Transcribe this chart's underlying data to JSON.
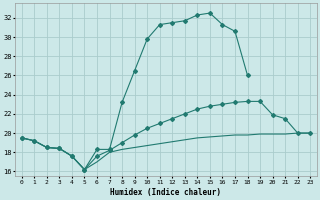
{
  "xlabel": "Humidex (Indice chaleur)",
  "bg_color": "#cce8e8",
  "grid_color": "#aacccc",
  "line_color": "#217a70",
  "xlim": [
    -0.5,
    23.5
  ],
  "ylim": [
    15.5,
    33.5
  ],
  "xticks": [
    0,
    1,
    2,
    3,
    4,
    5,
    6,
    7,
    8,
    9,
    10,
    11,
    12,
    13,
    14,
    15,
    16,
    17,
    18,
    19,
    20,
    21,
    22,
    23
  ],
  "yticks": [
    16,
    18,
    20,
    22,
    24,
    26,
    28,
    30,
    32
  ],
  "line1_x": [
    0,
    1,
    2,
    3,
    4,
    5,
    6,
    7,
    8,
    9,
    10,
    11,
    12,
    13,
    14,
    15,
    16,
    17,
    18
  ],
  "line1_y": [
    19.5,
    19.2,
    18.5,
    18.4,
    17.6,
    16.2,
    18.3,
    18.3,
    23.2,
    26.5,
    29.8,
    31.3,
    31.5,
    31.7,
    32.3,
    32.5,
    31.3,
    30.6,
    26.0
  ],
  "line2_x": [
    0,
    1,
    2,
    3,
    4,
    5,
    6,
    7,
    8,
    9,
    10,
    11,
    12,
    13,
    14,
    15,
    16,
    17,
    18,
    19,
    20,
    21,
    22,
    23
  ],
  "line2_y": [
    19.5,
    19.2,
    18.5,
    18.4,
    17.6,
    16.2,
    17.6,
    18.2,
    19.0,
    19.8,
    20.5,
    21.0,
    21.5,
    22.0,
    22.5,
    22.8,
    23.0,
    23.2,
    23.3,
    23.3,
    21.9,
    21.5,
    20.0,
    20.0
  ],
  "line3_x": [
    0,
    1,
    2,
    3,
    4,
    5,
    6,
    7,
    8,
    9,
    10,
    11,
    12,
    13,
    14,
    15,
    16,
    17,
    18,
    19,
    20,
    21,
    22,
    23
  ],
  "line3_y": [
    19.5,
    19.2,
    18.5,
    18.4,
    17.6,
    16.2,
    17.0,
    18.0,
    18.3,
    18.5,
    18.7,
    18.9,
    19.1,
    19.3,
    19.5,
    19.6,
    19.7,
    19.8,
    19.8,
    19.9,
    19.9,
    19.9,
    20.0,
    20.0
  ]
}
